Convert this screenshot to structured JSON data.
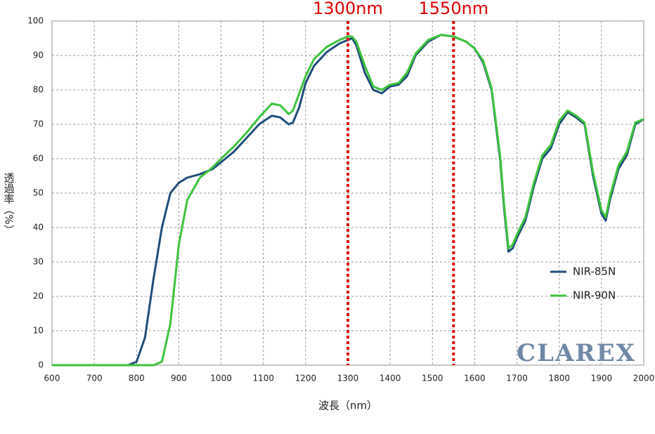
{
  "chart_data": {
    "type": "line",
    "xlabel": "波長（nm）",
    "ylabel": "透過率（%）",
    "x": [
      600,
      700,
      780,
      800,
      820,
      840,
      860,
      880,
      900,
      920,
      950,
      980,
      1000,
      1030,
      1060,
      1090,
      1120,
      1140,
      1160,
      1170,
      1185,
      1200,
      1220,
      1250,
      1280,
      1300,
      1310,
      1320,
      1340,
      1360,
      1380,
      1400,
      1420,
      1440,
      1460,
      1490,
      1520,
      1550,
      1580,
      1600,
      1620,
      1640,
      1660,
      1670,
      1680,
      1690,
      1700,
      1720,
      1740,
      1760,
      1780,
      1800,
      1820,
      1840,
      1860,
      1880,
      1900,
      1910,
      1920,
      1940,
      1960,
      1980,
      2000
    ],
    "series": [
      {
        "name": "NIR-85N",
        "color": "#1f4e79",
        "values": [
          0,
          0,
          0,
          1,
          8,
          25,
          40,
          50,
          53,
          54.5,
          55.5,
          57,
          59,
          62,
          66,
          70,
          72.5,
          72,
          70,
          70.5,
          75,
          82,
          87,
          91,
          93.5,
          94.5,
          95,
          93,
          85,
          80,
          79,
          81,
          81.5,
          84,
          90,
          94,
          96,
          95.5,
          94,
          92,
          88,
          80,
          60,
          45,
          33,
          34,
          37,
          42,
          52,
          60,
          63,
          70,
          73.5,
          72,
          70,
          55,
          44,
          42,
          48,
          57,
          61,
          70,
          71.5
        ]
      },
      {
        "name": "NIR-90N",
        "color": "#3cc33c",
        "values": [
          0,
          0,
          0,
          0,
          0,
          0,
          1,
          12,
          35,
          48,
          54.5,
          57.5,
          60,
          63.5,
          67.5,
          72,
          76,
          75.5,
          73,
          74,
          79,
          84,
          89,
          92.5,
          94.5,
          95.5,
          95.5,
          94,
          87,
          81,
          80,
          81.5,
          82,
          85,
          90.5,
          94.5,
          96,
          95.5,
          94,
          92,
          88.5,
          80.5,
          61,
          46,
          34,
          35,
          38,
          43,
          53,
          61,
          64,
          71,
          74,
          72.5,
          70.5,
          56,
          45,
          43,
          49,
          58,
          62,
          70.5,
          71.5
        ]
      }
    ],
    "xlim": [
      600,
      2000
    ],
    "ylim": [
      0,
      100
    ],
    "xticks": [
      600,
      700,
      800,
      900,
      1000,
      1100,
      1200,
      1300,
      1400,
      1500,
      1600,
      1700,
      1800,
      1900,
      2000
    ],
    "yticks": [
      0,
      10,
      20,
      30,
      40,
      50,
      60,
      70,
      80,
      90,
      100
    ],
    "grid": true,
    "markers": [
      {
        "text": "1300nm",
        "x": 1300,
        "color": "#e00000"
      },
      {
        "text": "1550nm",
        "x": 1550,
        "color": "#e00000"
      }
    ],
    "watermark": "CLAREX"
  }
}
